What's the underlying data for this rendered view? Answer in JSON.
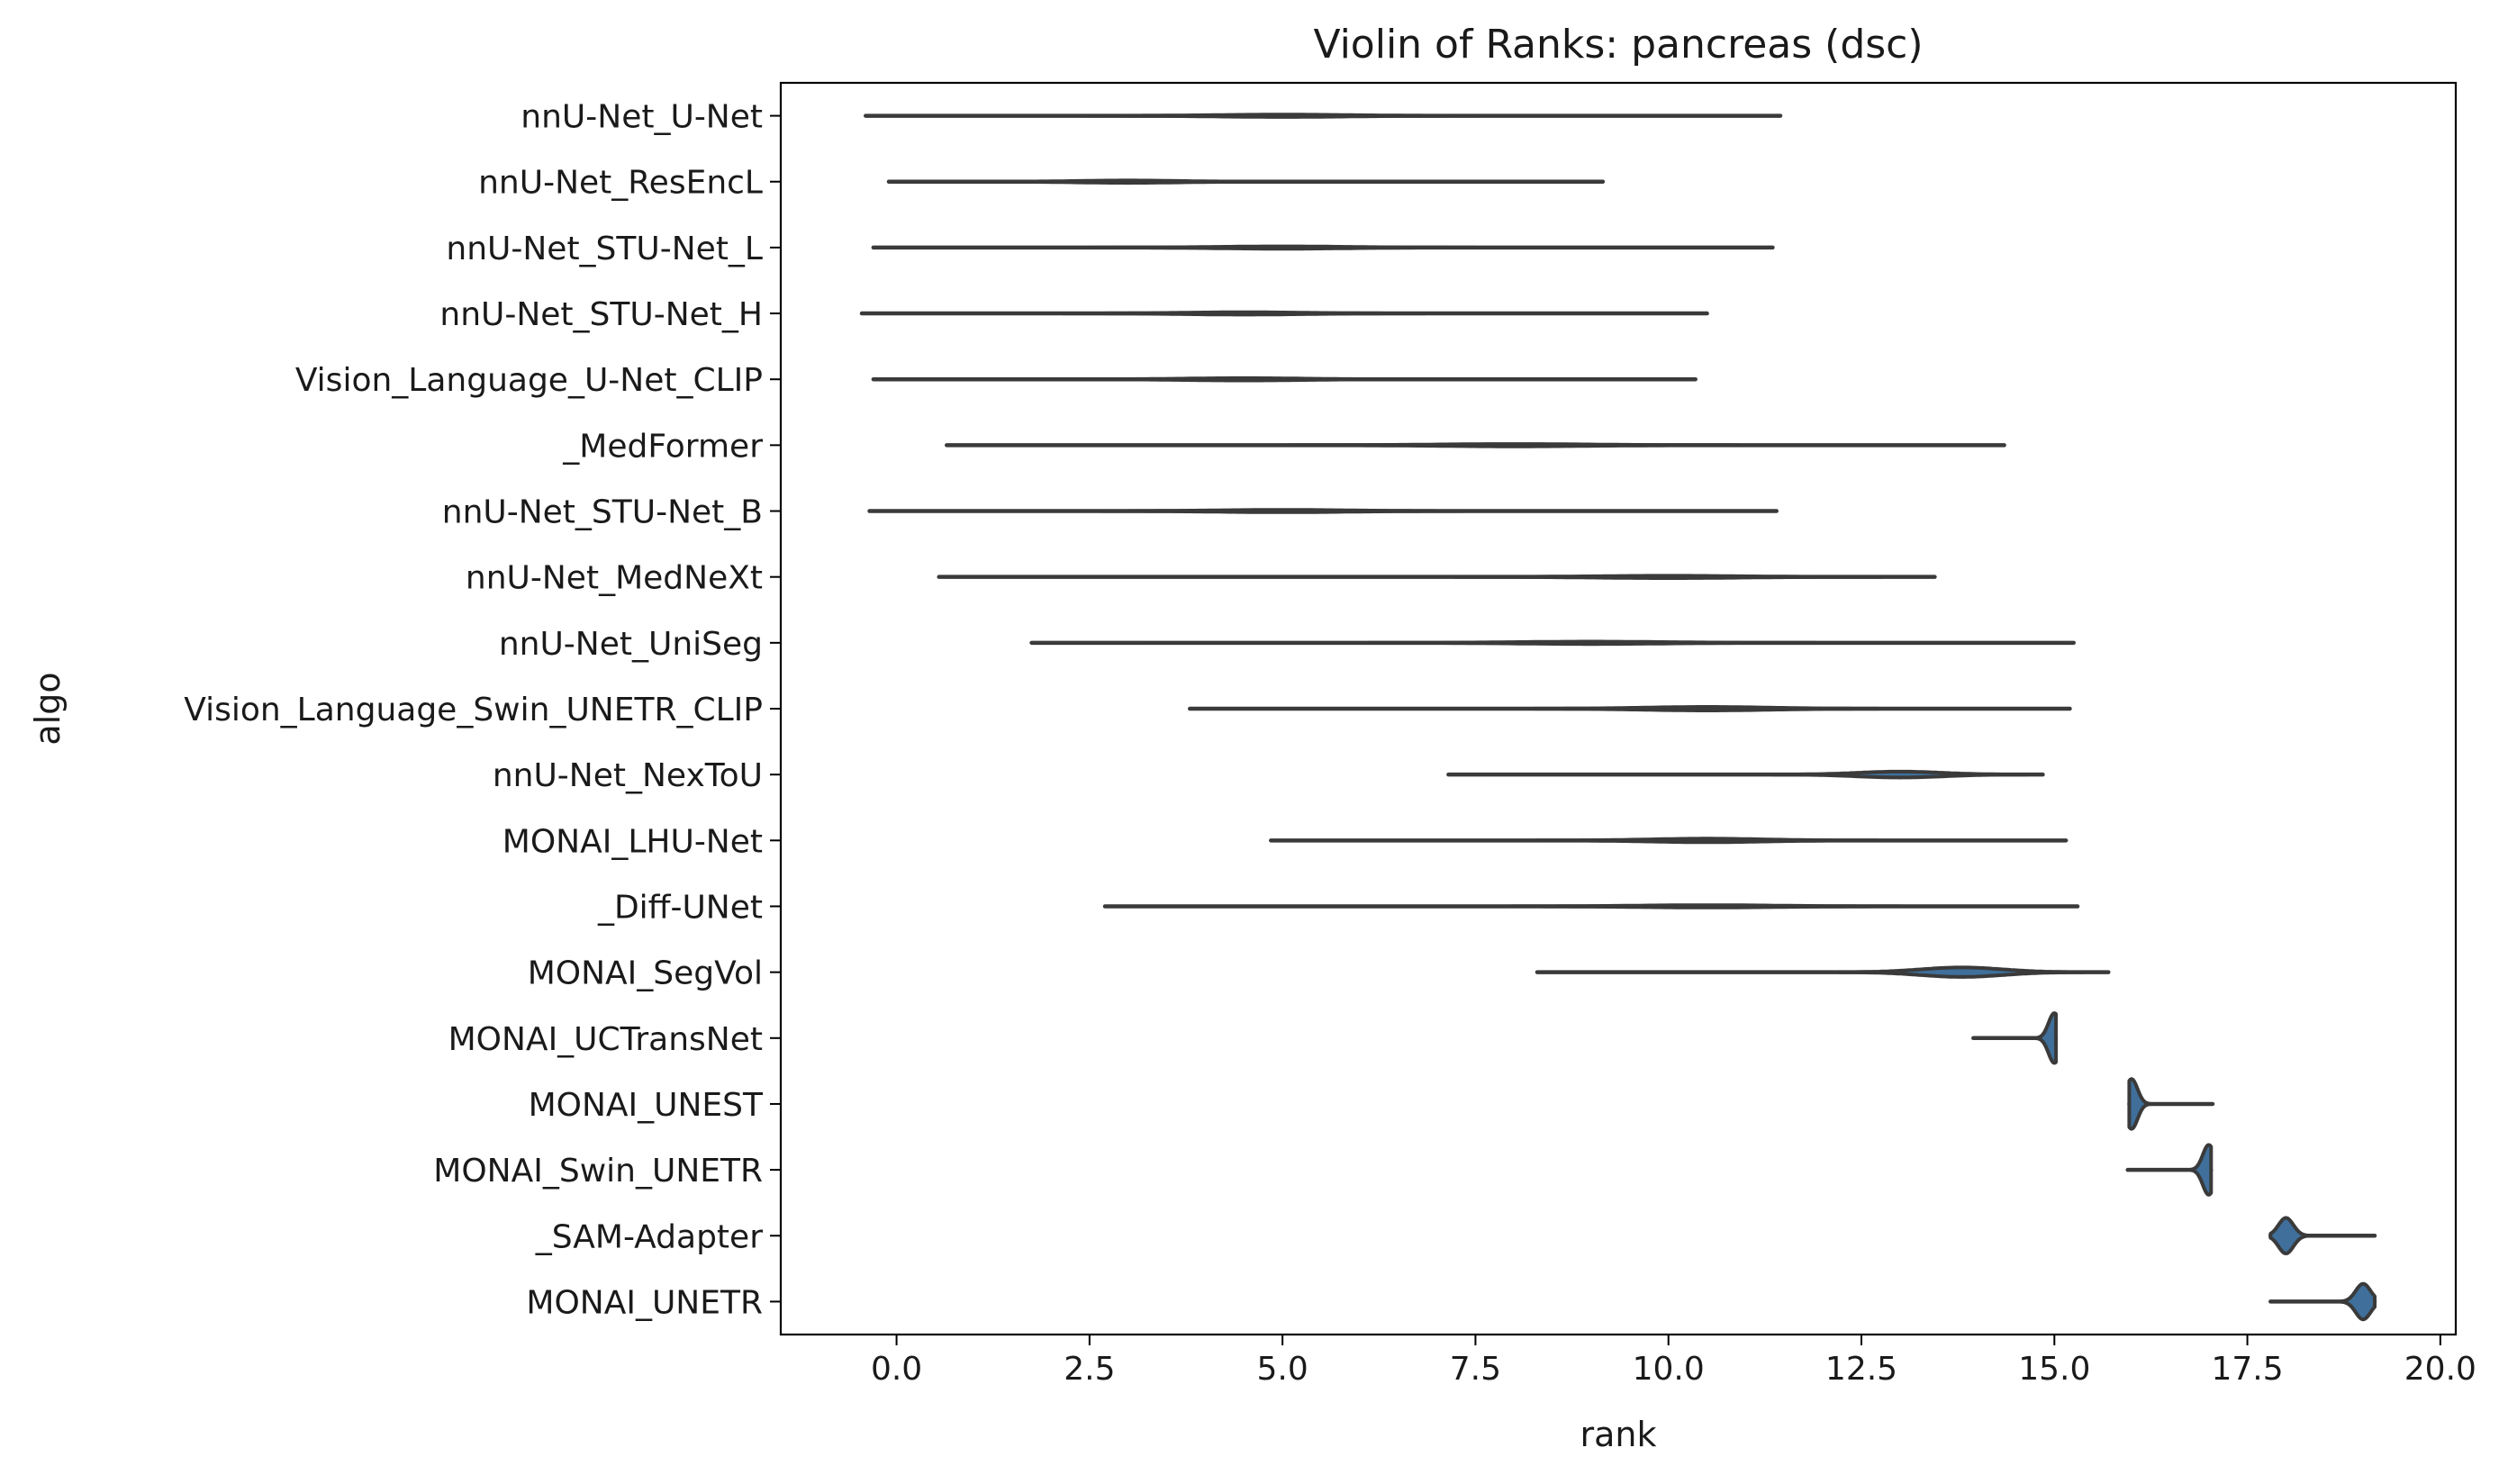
{
  "chart_data": {
    "type": "violin",
    "orientation": "horizontal",
    "title": "Violin of Ranks: pancreas (dsc)",
    "xlabel": "rank",
    "ylabel": "algo",
    "xlim": [
      -1.5,
      20.2
    ],
    "xticks": [
      0.0,
      2.5,
      5.0,
      7.5,
      10.0,
      12.5,
      15.0,
      17.5,
      20.0
    ],
    "xtick_labels": [
      "0.0",
      "2.5",
      "5.0",
      "7.5",
      "10.0",
      "12.5",
      "15.0",
      "17.5",
      "20.0"
    ],
    "grid": false,
    "legend": "none",
    "line_color": "#3a3a3a",
    "fill_color": "#3f6f9a",
    "categories": [
      "nnU-Net_U-Net",
      "nnU-Net_ResEncL",
      "nnU-Net_STU-Net_L",
      "nnU-Net_STU-Net_H",
      "Vision_Language_U-Net_CLIP",
      "_MedFormer",
      "nnU-Net_STU-Net_B",
      "nnU-Net_MedNeXt",
      "nnU-Net_UniSeg",
      "Vision_Language_Swin_UNETR_CLIP",
      "nnU-Net_NexToU",
      "MONAI_LHU-Net",
      "_Diff-UNet",
      "MONAI_SegVol",
      "MONAI_UCTransNet",
      "MONAI_UNEST",
      "MONAI_Swin_UNETR",
      "_SAM-Adapter",
      "MONAI_UNETR"
    ],
    "violins": [
      {
        "min": -0.4,
        "max": 11.45,
        "peak": 5.0,
        "bulge": 0.02
      },
      {
        "min": -0.1,
        "max": 9.15,
        "peak": 3.0,
        "bulge": 0.02
      },
      {
        "min": -0.3,
        "max": 11.35,
        "peak": 5.0,
        "bulge": 0.02
      },
      {
        "min": -0.45,
        "max": 10.5,
        "peak": 4.5,
        "bulge": 0.02
      },
      {
        "min": -0.3,
        "max": 10.35,
        "peak": 4.5,
        "bulge": 0.02
      },
      {
        "min": 0.65,
        "max": 14.35,
        "peak": 8.0,
        "bulge": 0.02
      },
      {
        "min": -0.35,
        "max": 11.4,
        "peak": 5.0,
        "bulge": 0.02
      },
      {
        "min": 0.55,
        "max": 13.45,
        "peak": 10.0,
        "bulge": 0.02
      },
      {
        "min": 1.75,
        "max": 15.25,
        "peak": 9.0,
        "bulge": 0.02
      },
      {
        "min": 3.8,
        "max": 15.2,
        "peak": 10.5,
        "bulge": 0.03
      },
      {
        "min": 7.15,
        "max": 14.85,
        "peak": 13.0,
        "bulge": 0.05
      },
      {
        "min": 4.85,
        "max": 15.15,
        "peak": 10.5,
        "bulge": 0.03
      },
      {
        "min": 2.7,
        "max": 15.3,
        "peak": 10.5,
        "bulge": 0.02
      },
      {
        "min": 8.3,
        "max": 15.7,
        "peak": 13.8,
        "bulge": 0.08
      },
      {
        "min": 13.95,
        "max": 15.02,
        "peak": 15.0,
        "bulge": 0.42
      },
      {
        "min": 15.97,
        "max": 17.05,
        "peak": 16.0,
        "bulge": 0.42
      },
      {
        "min": 15.95,
        "max": 17.03,
        "peak": 17.0,
        "bulge": 0.42
      },
      {
        "min": 17.8,
        "max": 19.15,
        "peak": 18.0,
        "bulge": 0.3
      },
      {
        "min": 17.8,
        "max": 19.15,
        "peak": 19.0,
        "bulge": 0.3
      }
    ]
  }
}
